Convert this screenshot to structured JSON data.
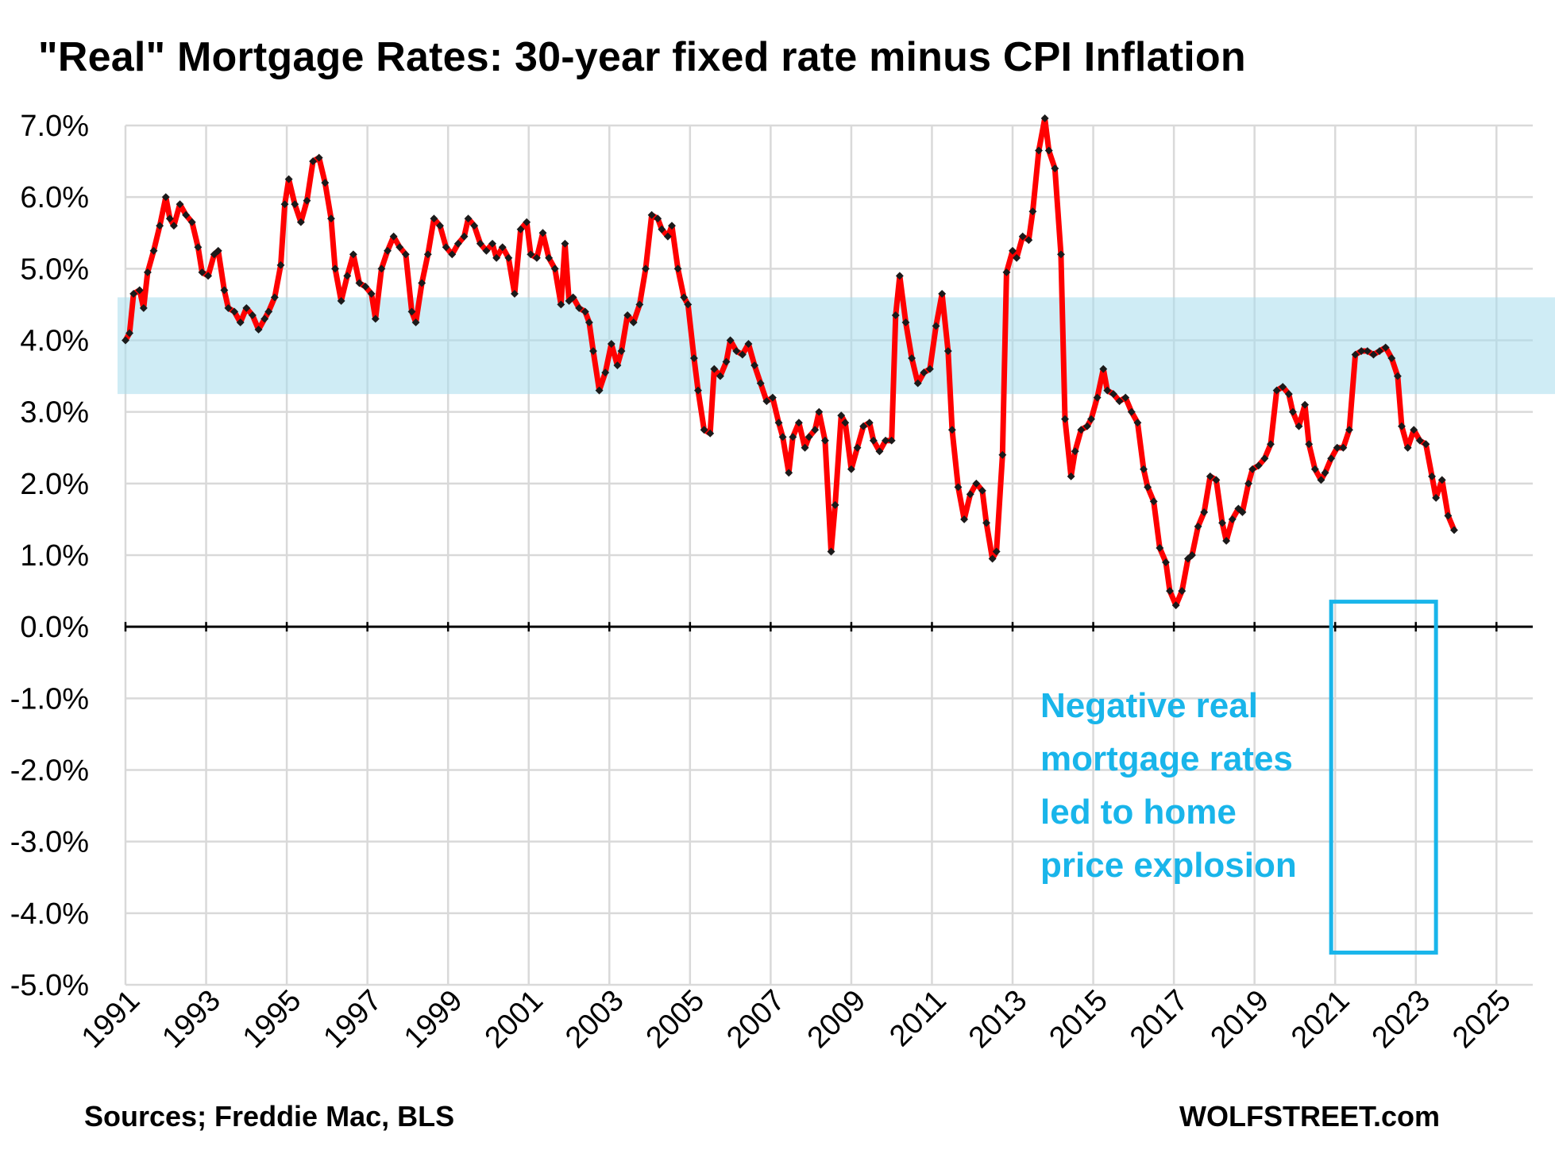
{
  "chart_data": {
    "type": "line",
    "title": "\"Real\" Mortgage Rates: 30-year fixed rate minus CPI Inflation",
    "xlabel": "",
    "ylabel": "",
    "ylim": [
      -5.0,
      7.0
    ],
    "xlim": [
      1991,
      2025.9
    ],
    "y_ticks": [
      "7.0%",
      "6.0%",
      "5.0%",
      "4.0%",
      "3.0%",
      "2.0%",
      "1.0%",
      "0.0%",
      "-1.0%",
      "-2.0%",
      "-3.0%",
      "-4.0%",
      "-5.0%"
    ],
    "x_ticks": [
      "1991",
      "1993",
      "1995",
      "1997",
      "1999",
      "2001",
      "2003",
      "2005",
      "2007",
      "2009",
      "2011",
      "2013",
      "2015",
      "2017",
      "2019",
      "2021",
      "2023",
      "2025"
    ],
    "grid": true,
    "shaded_band": {
      "y_from": 3.25,
      "y_to": 4.6,
      "color": "#a8dcec"
    },
    "highlight_box": {
      "x_from": 2020.9,
      "x_to": 2023.5,
      "y_from": -4.55,
      "y_to": 0.35,
      "color": "#19b5ea"
    },
    "series_color": "#ff0000",
    "marker_color": "#1a1a1a",
    "series": [
      {
        "values": [
          [
            1991.0,
            4.0
          ],
          [
            1991.1,
            4.1
          ],
          [
            1991.2,
            4.65
          ],
          [
            1991.35,
            4.7
          ],
          [
            1991.45,
            4.45
          ],
          [
            1991.55,
            4.95
          ],
          [
            1991.7,
            5.25
          ],
          [
            1991.85,
            5.6
          ],
          [
            1992.0,
            6.0
          ],
          [
            1992.1,
            5.7
          ],
          [
            1992.2,
            5.6
          ],
          [
            1992.35,
            5.9
          ],
          [
            1992.5,
            5.75
          ],
          [
            1992.65,
            5.65
          ],
          [
            1992.8,
            5.3
          ],
          [
            1992.9,
            4.95
          ],
          [
            1993.05,
            4.9
          ],
          [
            1993.2,
            5.2
          ],
          [
            1993.3,
            5.25
          ],
          [
            1993.45,
            4.7
          ],
          [
            1993.55,
            4.45
          ],
          [
            1993.7,
            4.4
          ],
          [
            1993.85,
            4.25
          ],
          [
            1994.0,
            4.45
          ],
          [
            1994.15,
            4.35
          ],
          [
            1994.3,
            4.15
          ],
          [
            1994.45,
            4.3
          ],
          [
            1994.55,
            4.4
          ],
          [
            1994.7,
            4.6
          ],
          [
            1994.85,
            5.05
          ],
          [
            1994.95,
            5.9
          ],
          [
            1995.05,
            6.25
          ],
          [
            1995.2,
            5.9
          ],
          [
            1995.35,
            5.65
          ],
          [
            1995.5,
            5.95
          ],
          [
            1995.65,
            6.5
          ],
          [
            1995.8,
            6.55
          ],
          [
            1995.95,
            6.2
          ],
          [
            1996.1,
            5.7
          ],
          [
            1996.2,
            5.0
          ],
          [
            1996.35,
            4.55
          ],
          [
            1996.5,
            4.9
          ],
          [
            1996.65,
            5.2
          ],
          [
            1996.8,
            4.8
          ],
          [
            1996.95,
            4.75
          ],
          [
            1997.1,
            4.65
          ],
          [
            1997.2,
            4.3
          ],
          [
            1997.35,
            5.0
          ],
          [
            1997.5,
            5.25
          ],
          [
            1997.65,
            5.45
          ],
          [
            1997.8,
            5.3
          ],
          [
            1997.95,
            5.2
          ],
          [
            1998.1,
            4.4
          ],
          [
            1998.2,
            4.25
          ],
          [
            1998.35,
            4.8
          ],
          [
            1998.5,
            5.2
          ],
          [
            1998.65,
            5.7
          ],
          [
            1998.8,
            5.6
          ],
          [
            1998.95,
            5.3
          ],
          [
            1999.1,
            5.2
          ],
          [
            1999.25,
            5.35
          ],
          [
            1999.4,
            5.45
          ],
          [
            1999.5,
            5.7
          ],
          [
            1999.65,
            5.6
          ],
          [
            1999.8,
            5.35
          ],
          [
            1999.95,
            5.25
          ],
          [
            2000.1,
            5.35
          ],
          [
            2000.2,
            5.15
          ],
          [
            2000.35,
            5.3
          ],
          [
            2000.5,
            5.15
          ],
          [
            2000.65,
            4.65
          ],
          [
            2000.8,
            5.55
          ],
          [
            2000.95,
            5.65
          ],
          [
            2001.05,
            5.2
          ],
          [
            2001.2,
            5.15
          ],
          [
            2001.35,
            5.5
          ],
          [
            2001.5,
            5.15
          ],
          [
            2001.65,
            5.0
          ],
          [
            2001.8,
            4.5
          ],
          [
            2001.9,
            5.35
          ],
          [
            2002.0,
            4.55
          ],
          [
            2002.1,
            4.6
          ],
          [
            2002.25,
            4.45
          ],
          [
            2002.4,
            4.4
          ],
          [
            2002.5,
            4.25
          ],
          [
            2002.6,
            3.85
          ],
          [
            2002.75,
            3.3
          ],
          [
            2002.9,
            3.55
          ],
          [
            2003.05,
            3.95
          ],
          [
            2003.2,
            3.65
          ],
          [
            2003.3,
            3.85
          ],
          [
            2003.45,
            4.35
          ],
          [
            2003.6,
            4.25
          ],
          [
            2003.75,
            4.5
          ],
          [
            2003.9,
            5.0
          ],
          [
            2004.05,
            5.75
          ],
          [
            2004.2,
            5.7
          ],
          [
            2004.3,
            5.55
          ],
          [
            2004.45,
            5.45
          ],
          [
            2004.55,
            5.6
          ],
          [
            2004.7,
            5.0
          ],
          [
            2004.85,
            4.6
          ],
          [
            2004.95,
            4.5
          ],
          [
            2005.1,
            3.75
          ],
          [
            2005.2,
            3.3
          ],
          [
            2005.35,
            2.75
          ],
          [
            2005.5,
            2.7
          ],
          [
            2005.6,
            3.6
          ],
          [
            2005.75,
            3.5
          ],
          [
            2005.9,
            3.7
          ],
          [
            2006.0,
            4.0
          ],
          [
            2006.15,
            3.85
          ],
          [
            2006.3,
            3.8
          ],
          [
            2006.45,
            3.95
          ],
          [
            2006.6,
            3.65
          ],
          [
            2006.75,
            3.4
          ],
          [
            2006.9,
            3.15
          ],
          [
            2007.05,
            3.2
          ],
          [
            2007.2,
            2.85
          ],
          [
            2007.3,
            2.65
          ],
          [
            2007.45,
            2.15
          ],
          [
            2007.55,
            2.65
          ],
          [
            2007.7,
            2.85
          ],
          [
            2007.85,
            2.5
          ],
          [
            2007.95,
            2.65
          ],
          [
            2008.1,
            2.75
          ],
          [
            2008.2,
            3.0
          ],
          [
            2008.35,
            2.6
          ],
          [
            2008.5,
            1.05
          ],
          [
            2008.6,
            1.7
          ],
          [
            2008.75,
            2.95
          ],
          [
            2008.85,
            2.85
          ],
          [
            2009.0,
            2.2
          ],
          [
            2009.15,
            2.5
          ],
          [
            2009.3,
            2.8
          ],
          [
            2009.45,
            2.85
          ],
          [
            2009.55,
            2.6
          ],
          [
            2009.7,
            2.45
          ],
          [
            2009.85,
            2.6
          ],
          [
            2010.0,
            2.6
          ],
          [
            2010.1,
            4.35
          ],
          [
            2010.2,
            4.9
          ],
          [
            2010.35,
            4.25
          ],
          [
            2010.5,
            3.75
          ],
          [
            2010.65,
            3.4
          ],
          [
            2010.8,
            3.55
          ],
          [
            2010.95,
            3.6
          ],
          [
            2011.1,
            4.2
          ],
          [
            2011.25,
            4.65
          ],
          [
            2011.4,
            3.85
          ],
          [
            2011.5,
            2.75
          ],
          [
            2011.65,
            1.95
          ],
          [
            2011.8,
            1.5
          ],
          [
            2011.95,
            1.85
          ],
          [
            2012.1,
            2.0
          ],
          [
            2012.25,
            1.9
          ],
          [
            2012.35,
            1.45
          ],
          [
            2012.5,
            0.95
          ],
          [
            2012.6,
            1.05
          ],
          [
            2012.75,
            2.4
          ],
          [
            2012.85,
            4.95
          ],
          [
            2013.0,
            5.25
          ],
          [
            2013.1,
            5.15
          ],
          [
            2013.25,
            5.45
          ],
          [
            2013.4,
            5.4
          ],
          [
            2013.5,
            5.8
          ],
          [
            2013.65,
            6.65
          ],
          [
            2013.8,
            7.1
          ],
          [
            2013.9,
            6.65
          ],
          [
            2014.05,
            6.4
          ],
          [
            2014.2,
            5.2
          ],
          [
            2014.3,
            2.9
          ],
          [
            2014.45,
            2.1
          ],
          [
            2014.55,
            2.45
          ],
          [
            2014.7,
            2.75
          ],
          [
            2014.85,
            2.8
          ],
          [
            2014.95,
            2.9
          ],
          [
            2015.1,
            3.2
          ],
          [
            2015.25,
            3.6
          ],
          [
            2015.35,
            3.3
          ],
          [
            2015.5,
            3.25
          ],
          [
            2015.65,
            3.15
          ],
          [
            2015.8,
            3.2
          ],
          [
            2015.95,
            3.0
          ],
          [
            2016.1,
            2.85
          ],
          [
            2016.25,
            2.2
          ],
          [
            2016.35,
            1.95
          ],
          [
            2016.5,
            1.75
          ],
          [
            2016.65,
            1.1
          ],
          [
            2016.8,
            0.9
          ],
          [
            2016.9,
            0.5
          ],
          [
            2017.05,
            0.3
          ],
          [
            2017.2,
            0.5
          ],
          [
            2017.35,
            0.95
          ],
          [
            2017.45,
            1.0
          ],
          [
            2017.6,
            1.4
          ],
          [
            2017.75,
            1.6
          ],
          [
            2017.9,
            2.1
          ],
          [
            2018.05,
            2.05
          ],
          [
            2018.2,
            1.45
          ],
          [
            2018.3,
            1.2
          ],
          [
            2018.45,
            1.5
          ],
          [
            2018.6,
            1.65
          ],
          [
            2018.7,
            1.6
          ],
          [
            2018.85,
            2.0
          ],
          [
            2018.95,
            2.2
          ],
          [
            2019.1,
            2.25
          ],
          [
            2019.25,
            2.35
          ],
          [
            2019.4,
            2.55
          ],
          [
            2019.55,
            3.3
          ],
          [
            2019.7,
            3.35
          ],
          [
            2019.85,
            3.25
          ],
          [
            2019.95,
            3.0
          ],
          [
            2020.1,
            2.8
          ],
          [
            2020.25,
            3.1
          ],
          [
            2020.35,
            2.55
          ],
          [
            2020.5,
            2.2
          ],
          [
            2020.65,
            2.05
          ],
          [
            2020.75,
            2.15
          ],
          [
            2020.9,
            2.35
          ],
          [
            2021.05,
            2.5
          ],
          [
            2021.2,
            2.5
          ],
          [
            2021.35,
            2.75
          ],
          [
            2021.5,
            3.8
          ],
          [
            2021.65,
            3.85
          ],
          [
            2021.8,
            3.85
          ],
          [
            2021.95,
            3.8
          ],
          [
            2022.1,
            3.85
          ],
          [
            2022.25,
            3.9
          ],
          [
            2022.4,
            3.75
          ],
          [
            2022.55,
            3.5
          ],
          [
            2022.65,
            2.8
          ],
          [
            2022.8,
            2.5
          ],
          [
            2022.95,
            2.75
          ],
          [
            2023.1,
            2.6
          ],
          [
            2023.25,
            2.55
          ],
          [
            2023.4,
            2.1
          ],
          [
            2023.5,
            1.8
          ],
          [
            2023.65,
            2.05
          ],
          [
            2023.8,
            1.55
          ],
          [
            2023.95,
            1.35
          ]
        ]
      }
    ]
  },
  "annotation": {
    "lines": [
      "Negative real",
      "mortgage rates",
      "led to home",
      "price explosion"
    ]
  },
  "footer": {
    "source": "Sources; Freddie Mac, BLS",
    "credit": "WOLFSTREET.com"
  }
}
